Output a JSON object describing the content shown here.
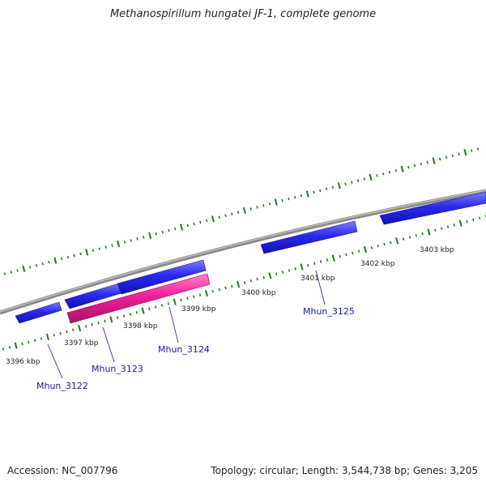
{
  "title": "Methanospirillum hungatei JF-1, complete genome",
  "footer": {
    "accession": "Accession: NC_007796",
    "summary": "Topology: circular; Length: 3,544,738 bp; Genes: 3,205"
  },
  "colors": {
    "backbone": "#8a8a8a",
    "tick": "#1e7a1e",
    "gene_forward": "#2222dd",
    "gene_reverse": "#e0208f",
    "label": "#1a1aa8"
  },
  "scale_labels": [
    "3396 kbp",
    "3397 kbp",
    "3398 kbp",
    "3399 kbp",
    "3400 kbp",
    "3401 kbp",
    "3402 kbp",
    "3403 kbp"
  ],
  "genes": [
    {
      "name": "Mhun_3122",
      "strand": "forward"
    },
    {
      "name": "Mhun_3123",
      "strand": "forward"
    },
    {
      "name": "Mhun_3124",
      "strand": "reverse"
    },
    {
      "name": "Mhun_3125",
      "strand": "forward"
    }
  ]
}
